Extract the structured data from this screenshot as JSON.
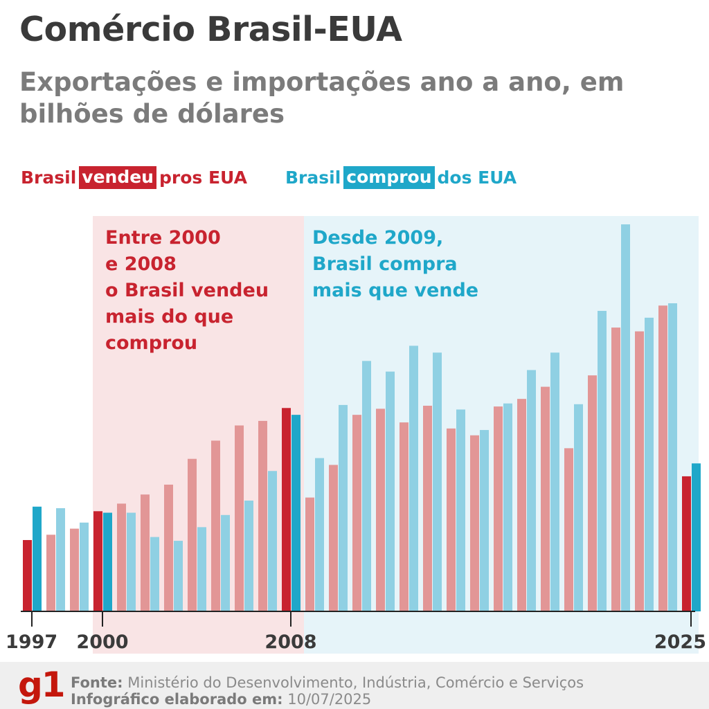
{
  "header": {
    "title": "Comércio Brasil-EUA",
    "subtitle": "Exportações e importações ano a ano, em bilhões de dólares"
  },
  "legend": {
    "sold_pre": "Brasil",
    "sold_hl": "vendeu",
    "sold_post": "pros EUA",
    "bought_pre": "Brasil",
    "bought_hl": "comprou",
    "bought_post": "dos EUA"
  },
  "annotations": {
    "period1": [
      "Entre 2000",
      "e 2008",
      "o Brasil vendeu",
      "mais do que",
      "comprou"
    ],
    "period2": [
      "Desde 2009,",
      "Brasil compra",
      "mais que vende"
    ]
  },
  "colors": {
    "sold": "#c8232f",
    "sold_light": "#e29696",
    "bought": "#1fa7c9",
    "bought_light": "#8fd0e3",
    "band_red": "#f9e4e5",
    "band_blue": "#e6f4f9"
  },
  "footer": {
    "logo": "g1",
    "source_label": "Fonte:",
    "source_text": "Ministério do Desenvolvimento, Indústria, Comércio e Serviços",
    "date_label": "Infográfico elaborado em:",
    "date_text": "10/07/2025"
  },
  "chart_data": {
    "type": "bar",
    "x": [
      1997,
      1998,
      1999,
      2000,
      2001,
      2002,
      2003,
      2004,
      2005,
      2006,
      2007,
      2008,
      2009,
      2010,
      2011,
      2012,
      2013,
      2014,
      2015,
      2016,
      2017,
      2018,
      2019,
      2020,
      2021,
      2022,
      2023,
      2024,
      2025
    ],
    "tick_labels": [
      "1997",
      "2000",
      "2008",
      "2025"
    ],
    "highlighted_years": [
      1997,
      2000,
      2008,
      2025
    ],
    "series": [
      {
        "name": "Brasil vendeu pros EUA",
        "values": [
          9.4,
          10.1,
          10.9,
          13.2,
          14.2,
          15.4,
          16.7,
          20.1,
          22.5,
          24.5,
          25.1,
          26.8,
          15.0,
          19.3,
          25.9,
          26.7,
          24.9,
          27.1,
          24.1,
          23.2,
          27.0,
          28.0,
          29.6,
          21.5,
          31.1,
          37.4,
          36.9,
          40.3,
          17.8
        ]
      },
      {
        "name": "Brasil comprou dos EUA",
        "values": [
          13.8,
          13.6,
          11.7,
          13.0,
          13.0,
          9.8,
          9.3,
          11.1,
          12.7,
          14.6,
          18.5,
          25.9,
          20.2,
          27.2,
          33.0,
          31.6,
          35.0,
          34.1,
          26.6,
          23.9,
          27.4,
          31.8,
          34.1,
          27.3,
          39.6,
          51.0,
          38.7,
          40.6,
          19.5
        ]
      }
    ]
  }
}
